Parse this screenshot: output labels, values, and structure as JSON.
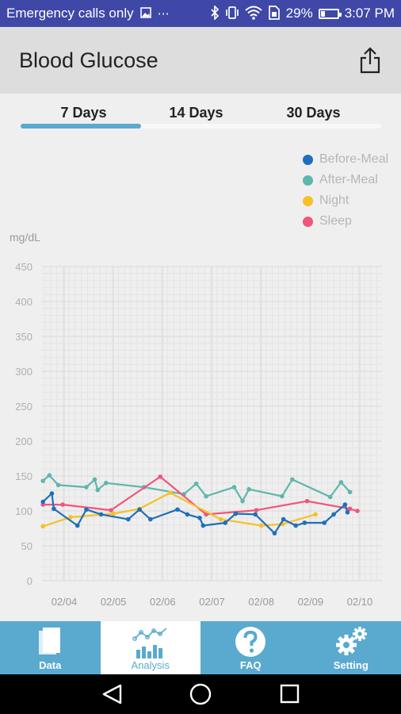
{
  "status_bar": {
    "carrier": "Emergency calls only",
    "battery": "29%",
    "battery_level": 0.29,
    "time": "3:07 PM",
    "icons": [
      "image-icon",
      "more-icon",
      "bluetooth-icon",
      "vibrate-icon",
      "wifi-icon",
      "sim-icon",
      "battery-icon"
    ]
  },
  "app_bar": {
    "title": "Blood Glucose",
    "share_icon": "share-icon"
  },
  "tabs": [
    {
      "label": "7 Days",
      "active": true
    },
    {
      "label": "14 Days",
      "active": false
    },
    {
      "label": "30 Days",
      "active": false
    }
  ],
  "colors": {
    "accent": "#5aa9cf",
    "before_meal": "#1f6fba",
    "after_meal": "#5fb6ad",
    "night": "#f6c127",
    "sleep": "#f0567a"
  },
  "chart_data": {
    "type": "line",
    "ylabel": "mg/dL",
    "ylim": [
      0,
      450
    ],
    "yticks": [
      0,
      50,
      100,
      150,
      200,
      250,
      300,
      350,
      400,
      450
    ],
    "xlim": [
      3.55,
      10.45
    ],
    "xticks": [
      {
        "x": 4,
        "label": "02/04"
      },
      {
        "x": 5,
        "label": "02/05"
      },
      {
        "x": 6,
        "label": "02/06"
      },
      {
        "x": 7,
        "label": "02/07"
      },
      {
        "x": 8,
        "label": "02/08"
      },
      {
        "x": 9,
        "label": "02/09"
      },
      {
        "x": 10,
        "label": "02/10"
      }
    ],
    "grid": true,
    "legend_position": "top-right",
    "series": [
      {
        "name": "Before-Meal",
        "color": "#1f6fba",
        "x": [
          3.57,
          3.75,
          3.79,
          4.27,
          4.45,
          4.75,
          5.3,
          5.53,
          5.75,
          6.3,
          6.5,
          6.75,
          6.82,
          7.27,
          7.48,
          7.88,
          8.27,
          8.45,
          8.7,
          8.88,
          9.28,
          9.47,
          9.7,
          9.75
        ],
        "y": [
          113,
          125,
          103,
          79,
          102,
          95,
          88,
          102,
          88,
          102,
          95,
          90,
          79,
          83,
          96,
          95,
          68,
          88,
          79,
          83,
          83,
          95,
          109,
          98
        ]
      },
      {
        "name": "After-Meal",
        "color": "#5fb6ad",
        "x": [
          3.57,
          3.7,
          3.88,
          4.45,
          4.62,
          4.68,
          4.85,
          5.62,
          6.43,
          6.68,
          6.88,
          7.45,
          7.62,
          7.75,
          8.42,
          8.63,
          9.4,
          9.62,
          9.8
        ],
        "y": [
          143,
          151,
          137,
          134,
          145,
          130,
          140,
          134,
          124,
          139,
          121,
          134,
          114,
          131,
          121,
          145,
          120,
          141,
          127
        ]
      },
      {
        "name": "Night",
        "color": "#f6c127",
        "x": [
          3.57,
          4.13,
          5.0,
          5.53,
          6.15,
          7.18,
          8.0,
          8.43,
          9.1
        ],
        "y": [
          78,
          91,
          96,
          103,
          126,
          88,
          79,
          81,
          95
        ]
      },
      {
        "name": "Sleep",
        "color": "#f0567a",
        "x": [
          3.57,
          3.97,
          4.95,
          5.95,
          6.88,
          7.9,
          8.93,
          9.8,
          9.95
        ],
        "y": [
          109,
          109,
          101,
          149,
          95,
          101,
          114,
          103,
          100
        ]
      }
    ]
  },
  "bottom_nav": [
    {
      "label": "Data",
      "icon": "data-icon",
      "active": false
    },
    {
      "label": "Analysis",
      "icon": "analysis-icon",
      "active": true
    },
    {
      "label": "FAQ",
      "icon": "faq-icon",
      "active": false
    },
    {
      "label": "Setting",
      "icon": "setting-icon",
      "active": false
    }
  ],
  "system_nav": [
    "back-icon",
    "home-icon",
    "recents-icon"
  ]
}
